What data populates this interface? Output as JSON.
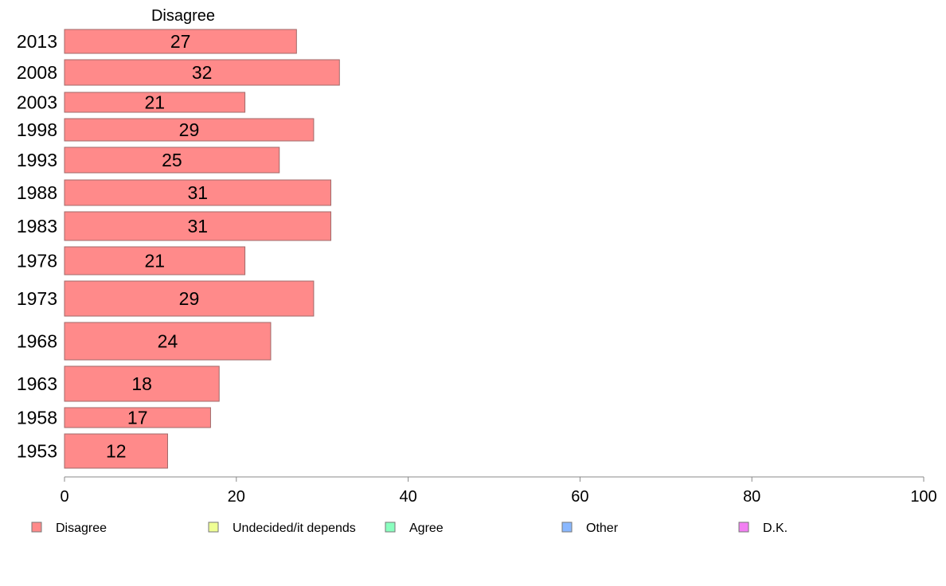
{
  "chart_data": {
    "type": "bar",
    "orientation": "horizontal",
    "column_header": "Disagree",
    "categories": [
      "2013",
      "2008",
      "2003",
      "1998",
      "1993",
      "1988",
      "1983",
      "1978",
      "1973",
      "1968",
      "1963",
      "1958",
      "1953"
    ],
    "series": [
      {
        "name": "Disagree",
        "values": [
          27,
          32,
          21,
          29,
          25,
          31,
          31,
          21,
          29,
          24,
          18,
          17,
          12
        ],
        "color": "#ff8a8a"
      }
    ],
    "value_labels": [
      "27",
      "32",
      "21",
      "29",
      "25",
      "31",
      "31",
      "21",
      "29",
      "24",
      "18",
      "17",
      "12"
    ],
    "xlim": [
      0,
      100
    ],
    "xticks": [
      "0",
      "20",
      "40",
      "60",
      "80",
      "100"
    ],
    "grid": false,
    "legend_position": "bottom",
    "legend": [
      {
        "label": "Disagree",
        "color": "#ff8a8a"
      },
      {
        "label": "Undecided/it depends",
        "color": "#efff94"
      },
      {
        "label": "Agree",
        "color": "#8affbf"
      },
      {
        "label": "Other",
        "color": "#8ab8ff"
      },
      {
        "label": "D.K.",
        "color": "#f27ff2"
      }
    ]
  }
}
